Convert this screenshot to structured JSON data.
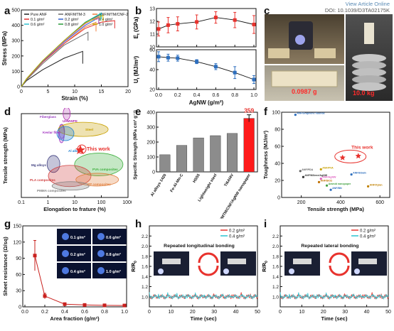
{
  "header": {
    "view_article": "View Article Online",
    "doi": "DOI: 10.1039/D3TA02175K"
  },
  "labels": {
    "a": "a",
    "b": "b",
    "c": "c",
    "d": "d",
    "e": "e",
    "f": "f",
    "g": "g",
    "h": "h",
    "i": "i"
  },
  "colors": {
    "red": "#e8322d",
    "blue": "#2e6fbe",
    "gray": "#8a8a8a",
    "darkred": "#c9211e"
  },
  "panel_c": {
    "mass_label": "0.0987 g",
    "load_label": "10.0 kg"
  },
  "chart_data": [
    {
      "id": "a",
      "type": "line",
      "xlabel": "Strain (%)",
      "ylabel": "Stress (MPa)",
      "xlim": [
        0,
        20
      ],
      "ylim": [
        0,
        500
      ],
      "xticks": [
        0,
        5,
        10,
        15,
        20
      ],
      "yticks": [
        0,
        100,
        200,
        300,
        400,
        500
      ],
      "legend": "top-left",
      "series": [
        {
          "name": "Pure ANF",
          "color": "#222222",
          "x": [
            0,
            1,
            4,
            8,
            11.5,
            11.5
          ],
          "y": [
            0,
            40,
            110,
            185,
            230,
            150
          ]
        },
        {
          "name": "ANF/MTM-3",
          "color": "#6a6a6a",
          "x": [
            0,
            1,
            4,
            8,
            12.5,
            12.5
          ],
          "y": [
            0,
            45,
            150,
            270,
            355,
            300
          ]
        },
        {
          "name": "ANF/MTM/CNF-2",
          "color": "#f08040",
          "x": [
            0,
            1,
            4,
            8,
            12,
            14,
            14
          ],
          "y": [
            0,
            50,
            160,
            280,
            390,
            420,
            360
          ]
        },
        {
          "name": "0.1 g/m²",
          "color": "#e03030",
          "x": [
            0,
            1,
            4,
            8,
            12,
            15,
            17.5,
            17.5
          ],
          "y": [
            0,
            50,
            160,
            280,
            380,
            420,
            430,
            380
          ]
        },
        {
          "name": "0.2 g/m²",
          "color": "#3060d0",
          "x": [
            0,
            1,
            4,
            8,
            12,
            14.5,
            14.5
          ],
          "y": [
            0,
            52,
            165,
            290,
            400,
            450,
            410
          ]
        },
        {
          "name": "0.4 g/m²",
          "color": "#e060c0",
          "x": [
            0,
            1,
            4,
            8,
            12,
            14.5,
            14.5
          ],
          "y": [
            0,
            52,
            168,
            295,
            410,
            460,
            415
          ]
        },
        {
          "name": "0.6 g/m²",
          "color": "#30c0d0",
          "x": [
            0,
            1,
            4,
            8,
            12,
            15,
            15
          ],
          "y": [
            0,
            53,
            170,
            300,
            420,
            480,
            440
          ]
        },
        {
          "name": "0.8 g/m²",
          "color": "#2a9a3a",
          "x": [
            0,
            1,
            4,
            8,
            12,
            14.8,
            14.8
          ],
          "y": [
            0,
            53,
            170,
            300,
            420,
            470,
            430
          ]
        },
        {
          "name": "1.0 g/m²",
          "color": "#c8b400",
          "x": [
            0,
            1,
            4,
            8,
            12,
            15.3,
            15.3
          ],
          "y": [
            0,
            53,
            170,
            300,
            415,
            465,
            425
          ]
        }
      ]
    },
    {
      "id": "b",
      "type": "line",
      "xlabel": "AgNW (g/m²)",
      "top": {
        "ylabel": "E",
        "ylabel_sub": "t",
        "ylabel_unit": " (GPa)",
        "ylim": [
          10,
          13
        ],
        "yticks": [
          10,
          11,
          12,
          13
        ],
        "color": "#e8322d",
        "x": [
          0,
          0.1,
          0.2,
          0.4,
          0.6,
          0.8,
          1.0
        ],
        "y": [
          11.4,
          11.7,
          11.8,
          11.95,
          12.3,
          12.1,
          11.75
        ],
        "err": [
          0.55,
          0.6,
          0.55,
          0.55,
          0.45,
          0.6,
          0.7
        ]
      },
      "bottom": {
        "ylabel": "U",
        "ylabel_sub": "t",
        "ylabel_unit": " (MJ/m³)",
        "ylim": [
          20,
          60
        ],
        "yticks": [
          20,
          40,
          60
        ],
        "color": "#2e6fbe",
        "x": [
          0,
          0.1,
          0.2,
          0.4,
          0.6,
          0.8,
          1.0
        ],
        "y": [
          53,
          52,
          51.5,
          48,
          43,
          37,
          30
        ],
        "err": [
          5,
          3.5,
          3,
          2,
          3,
          6,
          4
        ]
      },
      "xlim": [
        0,
        1.0
      ],
      "xticks": [
        0.0,
        0.2,
        0.4,
        0.6,
        0.8,
        1.0
      ]
    },
    {
      "id": "d",
      "type": "scatter",
      "xlabel": "Elongation to frature (%)",
      "ylabel": "Tensile strength (MPa)",
      "xscale": "log",
      "xlim": [
        0.1,
        1000
      ],
      "xticks": [
        0.1,
        1,
        10,
        100,
        1000
      ],
      "highlight": "This work",
      "regions": [
        {
          "name": "Fiberglass",
          "color": "#9a40c0"
        },
        {
          "name": "UHMWPE",
          "color": "#b030b0"
        },
        {
          "name": "Kevlar fiber",
          "color": "#a030c0"
        },
        {
          "name": "Steel",
          "color": "#c8a000"
        },
        {
          "name": "Al alloys",
          "color": "#2080d0"
        },
        {
          "name": "Mg alloys",
          "color": "#404080"
        },
        {
          "name": "PVA composites",
          "color": "#40b040"
        },
        {
          "name": "PLA composites",
          "color": "#d04040"
        },
        {
          "name": "PP composites",
          "color": "#e08040"
        },
        {
          "name": "PMMA composites",
          "color": "#808080"
        }
      ]
    },
    {
      "id": "e",
      "type": "bar",
      "ylabel": "Specific Strength (MPa cm³ g⁻¹)",
      "ylim": [
        0,
        400
      ],
      "yticks": [
        0,
        100,
        200,
        300,
        400
      ],
      "categories": [
        "Al alloys 1420",
        "Fe-Al-Mn-C",
        "HS55",
        "Lightweight steel",
        "Ti6Al4V",
        "ANF/MTM/CNF/AgNW nanopaper"
      ],
      "values": [
        115,
        178,
        228,
        243,
        258,
        359
      ],
      "top_label": "359"
    },
    {
      "id": "f",
      "type": "scatter",
      "xlabel": "Tensile strength (MPa)",
      "ylabel": "Toughness (MJ/m³)",
      "xlim": [
        0,
        600
      ],
      "ylim": [
        0,
        100
      ],
      "xticks": [
        200,
        400,
        600
      ],
      "yticks": [
        0,
        20,
        40,
        60,
        80,
        100
      ],
      "highlight": "This work",
      "points": [
        {
          "label": "ANF/Graphene fluoride",
          "color": "#2e6fbe",
          "x": 170,
          "y": 97
        },
        {
          "label": "This work",
          "color": "#e8322d",
          "x": 410,
          "y": 47
        },
        {
          "label": "This work",
          "color": "#e8322d",
          "x": 490,
          "y": 49
        },
        {
          "label": "ANF/PVA",
          "color": "#c8a000",
          "x": 300,
          "y": 33
        },
        {
          "label": "ANF/EGaIn",
          "color": "#2e6fbe",
          "x": 455,
          "y": 27
        },
        {
          "label": "ANF/PDA",
          "color": "#606060",
          "x": 195,
          "y": 31
        },
        {
          "label": "ANF/MXene/AgNW",
          "color": "#303030",
          "x": 210,
          "y": 24
        },
        {
          "label": "ANF/AgNW",
          "color": "#e060c0",
          "x": 300,
          "y": 22
        },
        {
          "label": "ANF/SiO2",
          "color": "#c07000",
          "x": 290,
          "y": 18
        },
        {
          "label": "Aramid nanopaper",
          "color": "#40a040",
          "x": 330,
          "y": 14
        },
        {
          "label": "ANF/BN",
          "color": "#2e6fbe",
          "x": 350,
          "y": 9
        },
        {
          "label": "ANF/Xylan",
          "color": "#c08000",
          "x": 540,
          "y": 13
        }
      ]
    },
    {
      "id": "g",
      "type": "line",
      "xlabel": "Area fraction (g/m²)",
      "ylabel": "Sheet resistance (Ω/sq)",
      "xlim": [
        0,
        1.0
      ],
      "ylim": [
        0,
        150
      ],
      "xticks": [
        0.0,
        0.2,
        0.4,
        0.6,
        0.8,
        1.0
      ],
      "yticks": [
        0,
        30,
        60,
        90,
        120,
        150
      ],
      "color": "#c9211e",
      "x": [
        0.1,
        0.2,
        0.4,
        0.6,
        0.8,
        1.0
      ],
      "y": [
        95,
        20,
        5,
        3.5,
        2.8,
        2.5
      ],
      "err": [
        28,
        5,
        1.5,
        1,
        0.8,
        0.5
      ],
      "insets": [
        "0.1 g/m²",
        "0.6 g/m²",
        "0.2 g/m²",
        "0.8 g/m²",
        "0.4 g/m²",
        "1.0 g/m²"
      ]
    },
    {
      "id": "h",
      "type": "line",
      "xlabel": "Time (sec)",
      "ylabel": "R/R",
      "ylabel_sub": "0",
      "xlim": [
        0,
        50
      ],
      "ylim": [
        0.8,
        2.4
      ],
      "xticks": [
        0,
        10,
        20,
        30,
        40,
        50
      ],
      "yticks": [
        1.0,
        1.2,
        1.4,
        1.6,
        1.8,
        2.0,
        2.2
      ],
      "annotation": "Repeated longitudinal bonding",
      "legend": "top-right",
      "series": [
        {
          "name": "0.2 g/m²",
          "color": "#e8322d"
        },
        {
          "name": "0.4 g/m²",
          "color": "#2ac3d0"
        }
      ]
    },
    {
      "id": "i",
      "type": "line",
      "xlabel": "Time (sec)",
      "ylabel": "R/R",
      "ylabel_sub": "0",
      "xlim": [
        0,
        50
      ],
      "ylim": [
        0.8,
        2.4
      ],
      "xticks": [
        0,
        10,
        20,
        30,
        40,
        50
      ],
      "yticks": [
        1.0,
        1.2,
        1.4,
        1.6,
        1.8,
        2.0,
        2.2
      ],
      "annotation": "Repeated lateral bonding",
      "legend": "top-right",
      "series": [
        {
          "name": "0.2 g/m²",
          "color": "#e8322d"
        },
        {
          "name": "0.4 g/m²",
          "color": "#2ac3d0"
        }
      ]
    }
  ]
}
